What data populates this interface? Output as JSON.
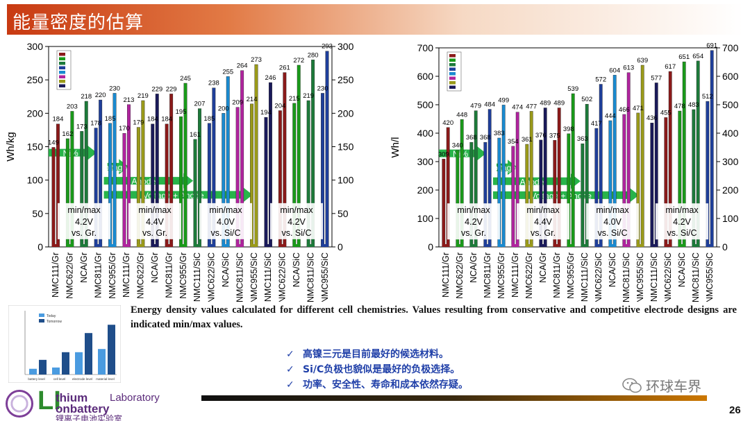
{
  "slide": {
    "title": "能量密度的估算",
    "caption": "Energy density values calculated for different cell chemistries. Values resulting from conservative and competitive electrode designs are indicated min/max values.",
    "bullets": [
      "高镍三元是目前最好的候选材料。",
      "Si/C负极也貌似是最好的负极选择。",
      "功率、安全性、寿命和成本依然存疑。"
    ],
    "bullet_mark": "✓",
    "page_number": "26",
    "watermark": "环球车界",
    "logo": {
      "big_letters": "LI",
      "line1": "thium",
      "lab": "Laboratory",
      "line2": "onbattery",
      "cn": "锂离子电池实验室"
    }
  },
  "colors": {
    "series": [
      "#8b1a1a",
      "#1a9a1a",
      "#1d7a3a",
      "#1f3f9a",
      "#1a8ad0",
      "#b0249e",
      "#9a9a1a",
      "#1a1a5a"
    ],
    "arrow": "#1cb040"
  },
  "chart_data": [
    {
      "type": "bar",
      "ylabel": "Wh/kg",
      "ylim": [
        0,
        300
      ],
      "yticks": [
        0,
        50,
        100,
        150,
        200,
        250,
        300
      ],
      "categories": [
        "NMC111/Gr",
        "NMC622/Gr",
        "NCA/Gr",
        "NMC811/Gr",
        "NMC955/Gr",
        "NMC111/Gr",
        "NMC622/Gr",
        "NCA/Gr",
        "NMC811/Gr",
        "NMC955/Gr",
        "NMC111/SiC",
        "NMC622/SiC",
        "NCA/SiC",
        "NMC811/SiC",
        "NMC955/SiC",
        "NMC111/SiC",
        "NMC622/SiC",
        "NCA/SiC",
        "NMC811/SiC",
        "NMC955/SiC"
      ],
      "min": [
        149,
        162,
        173,
        178,
        185,
        170,
        179,
        184,
        184,
        195,
        161,
        185,
        200,
        209,
        214,
        194,
        204,
        215,
        219,
        230
      ],
      "max": [
        184,
        203,
        218,
        220,
        230,
        213,
        219,
        229,
        229,
        245,
        207,
        238,
        255,
        264,
        273,
        246,
        261,
        272,
        280,
        293
      ],
      "groups": [
        {
          "label": "min/max",
          "voltage": "4.2V",
          "anode": "vs. Gr."
        },
        {
          "label": "min/max",
          "voltage": "4.4V",
          "anode": "vs. Gr."
        },
        {
          "label": "min/max",
          "voltage": "4.0V",
          "anode": "vs. Si/C"
        },
        {
          "label": "min/max",
          "voltage": "4.2V",
          "anode": "vs. Si/C"
        }
      ],
      "arrows": [
        "Ni%",
        "Voltage",
        "Anode",
        "Voltage + Anode"
      ]
    },
    {
      "type": "bar",
      "ylabel": "Wh/l",
      "ylim": [
        0,
        700
      ],
      "yticks": [
        0,
        100,
        200,
        300,
        400,
        500,
        600,
        700
      ],
      "categories": [
        "NMC111/Gr",
        "NMC622/Gr",
        "NCA/Gr",
        "NMC811/Gr",
        "NMC955/Gr",
        "NMC111/Gr",
        "NMC622/Gr",
        "NCA/Gr",
        "NMC811/Gr",
        "NMC955/Gr",
        "NMC111/SiC",
        "NMC622/SiC",
        "NCA/SiC",
        "NMC811/SiC",
        "NMC955/SiC",
        "NMC111/SiC",
        "NMC622/SiC",
        "NCA/SiC",
        "NMC811/SiC",
        "NMC955/SiC"
      ],
      "min": [
        309,
        340,
        368,
        368,
        383,
        354,
        361,
        376,
        375,
        398,
        363,
        417,
        444,
        466,
        471,
        436,
        455,
        478,
        483,
        512
      ],
      "max": [
        420,
        448,
        479,
        484,
        499,
        474,
        477,
        489,
        489,
        539,
        502,
        572,
        604,
        613,
        639,
        577,
        617,
        651,
        654,
        691
      ],
      "groups": [
        {
          "label": "min/max",
          "voltage": "4.2V",
          "anode": "vs. Gr."
        },
        {
          "label": "min/max",
          "voltage": "4.4V",
          "anode": "vs. Gr."
        },
        {
          "label": "min/max",
          "voltage": "4.0V",
          "anode": "vs. Si/C"
        },
        {
          "label": "min/max",
          "voltage": "4.2V",
          "anode": "vs. Si/C"
        }
      ],
      "arrows": [
        "Ni%",
        "Voltage",
        "Anode",
        "Voltage + Anode"
      ]
    }
  ],
  "inset_chart": {
    "type": "bar",
    "categories": [
      "battery level",
      "cell level",
      "electrode level",
      "material level"
    ],
    "series": [
      {
        "name": "Today",
        "values": [
          90,
          110,
          350,
          400
        ]
      },
      {
        "name": "Tomorrow",
        "values": [
          230,
          350,
          650,
          780
        ]
      }
    ],
    "ylim": [
      0,
      1000
    ]
  }
}
